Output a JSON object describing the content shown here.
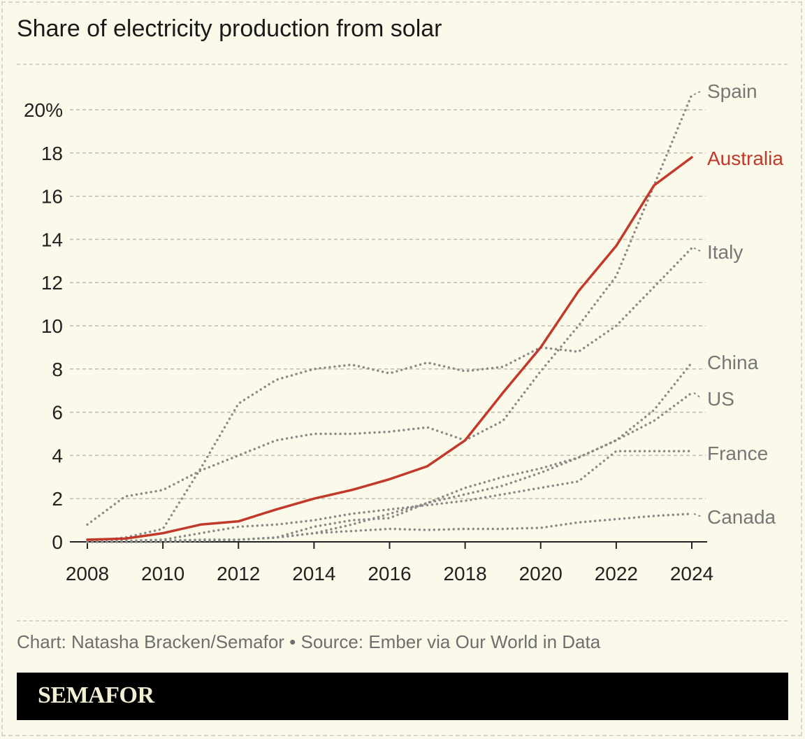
{
  "chart_data": {
    "type": "line",
    "title": "Share of electricity production from solar",
    "xlabel": "",
    "ylabel": "",
    "x": [
      2008,
      2009,
      2010,
      2011,
      2012,
      2013,
      2014,
      2015,
      2016,
      2017,
      2018,
      2019,
      2020,
      2021,
      2022,
      2023,
      2024
    ],
    "xlim": [
      2008,
      2024
    ],
    "ylim": [
      0,
      20
    ],
    "x_ticks": [
      "2008",
      "2010",
      "2012",
      "2014",
      "2016",
      "2018",
      "2020",
      "2022",
      "2024"
    ],
    "y_ticks": [
      "0",
      "2",
      "4",
      "6",
      "8",
      "10",
      "12",
      "14",
      "16",
      "18",
      "20%"
    ],
    "grid": "horizontal dashed",
    "legend": "direct labels at right end of lines",
    "series": [
      {
        "name": "Spain",
        "color": "#8a8a8a",
        "style": "dotted",
        "values": [
          0.8,
          2.1,
          2.4,
          3.3,
          4.0,
          4.7,
          5.0,
          5.0,
          5.1,
          5.3,
          4.7,
          5.6,
          7.9,
          10.0,
          12.3,
          16.5,
          20.7
        ]
      },
      {
        "name": "Italy",
        "color": "#8a8a8a",
        "style": "dotted",
        "values": [
          0.0,
          0.2,
          0.6,
          3.4,
          6.4,
          7.5,
          8.0,
          8.2,
          7.8,
          8.3,
          7.9,
          8.1,
          9.0,
          8.8,
          10.0,
          11.8,
          13.6
        ]
      },
      {
        "name": "China",
        "color": "#8a8a8a",
        "style": "dotted",
        "values": [
          0.0,
          0.0,
          0.0,
          0.05,
          0.1,
          0.2,
          0.7,
          1.0,
          1.1,
          1.8,
          2.5,
          3.0,
          3.4,
          3.9,
          4.7,
          6.1,
          8.3
        ]
      },
      {
        "name": "US",
        "color": "#8a8a8a",
        "style": "dotted",
        "values": [
          0.0,
          0.0,
          0.05,
          0.1,
          0.1,
          0.2,
          0.4,
          0.8,
          1.3,
          1.8,
          2.2,
          2.6,
          3.2,
          3.9,
          4.7,
          5.6,
          6.9
        ]
      },
      {
        "name": "France",
        "color": "#8a8a8a",
        "style": "dotted",
        "values": [
          0.0,
          0.05,
          0.1,
          0.4,
          0.7,
          0.8,
          1.0,
          1.3,
          1.5,
          1.7,
          1.9,
          2.2,
          2.5,
          2.8,
          4.2,
          4.2,
          4.2
        ]
      },
      {
        "name": "Canada",
        "color": "#8a8a8a",
        "style": "dotted",
        "values": [
          0.0,
          0.0,
          0.0,
          0.05,
          0.1,
          0.2,
          0.4,
          0.5,
          0.6,
          0.55,
          0.6,
          0.6,
          0.65,
          0.9,
          1.05,
          1.2,
          1.3
        ]
      },
      {
        "name": "Australia",
        "color": "#c0392b",
        "style": "solid",
        "values": [
          0.1,
          0.15,
          0.4,
          0.8,
          0.95,
          1.5,
          2.0,
          2.4,
          2.9,
          3.5,
          4.7,
          6.9,
          9.0,
          11.6,
          13.7,
          16.5,
          17.8
        ]
      }
    ]
  },
  "credit": "Chart: Natasha Bracken/Semafor • Source: Ember via Our World in Data",
  "brand": "SEMAFOR"
}
